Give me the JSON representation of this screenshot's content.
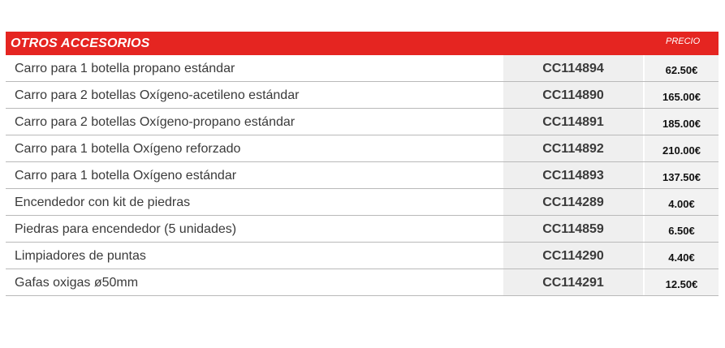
{
  "section": {
    "title": "OTROS ACCESORIOS",
    "price_label": "PRECIO"
  },
  "rows": [
    {
      "description": "Carro para 1 botella propano estándar",
      "code": "CC114894",
      "price": "62.50€"
    },
    {
      "description": "Carro para 2 botellas Oxígeno-acetileno estándar",
      "code": "CC114890",
      "price": "165.00€"
    },
    {
      "description": "Carro para 2 botellas Oxígeno-propano estándar",
      "code": "CC114891",
      "price": "185.00€"
    },
    {
      "description": "Carro para 1 botella Oxígeno reforzado",
      "code": "CC114892",
      "price": "210.00€"
    },
    {
      "description": "Carro para 1 botella Oxígeno estándar",
      "code": "CC114893",
      "price": "137.50€"
    },
    {
      "description": "Encendedor con kit de piedras",
      "code": "CC114289",
      "price": "4.00€"
    },
    {
      "description": "Piedras para encendedor (5 unidades)",
      "code": "CC114859",
      "price": "6.50€"
    },
    {
      "description": "Limpiadores de puntas",
      "code": "CC114290",
      "price": "4.40€"
    },
    {
      "description": "Gafas oxigas ø50mm",
      "code": "CC114291",
      "price": "12.50€"
    }
  ],
  "colors": {
    "header_bg": "#e52521",
    "code_cell_bg": "#efefef",
    "row_divider": "#b9b9b9"
  }
}
